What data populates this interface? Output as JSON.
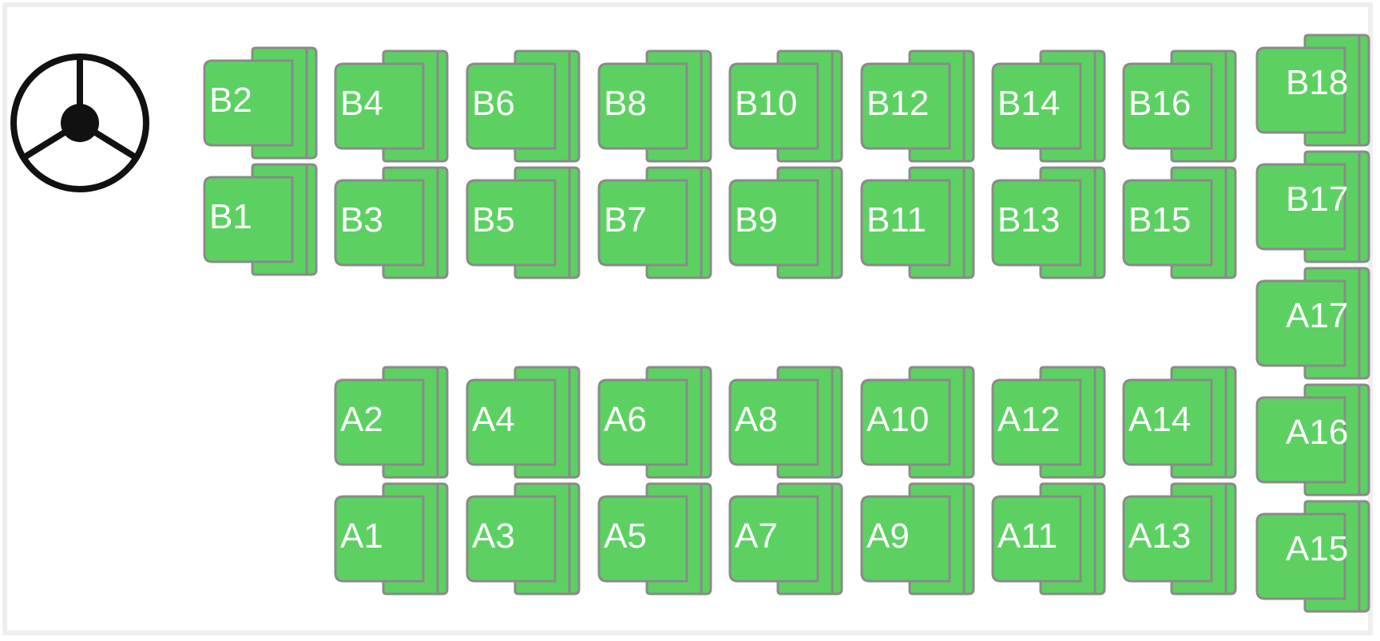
{
  "layout": {
    "seat_color": "#5cd162",
    "seat_outline": "#8a8a8a",
    "steering_color": "#111111",
    "frame_color": "#eeeeee"
  },
  "steering_wheel": {
    "icon": "steering-wheel-icon"
  },
  "seats": {
    "row_b_top": [
      "B2",
      "B4",
      "B6",
      "B8",
      "B10",
      "B12",
      "B14",
      "B16"
    ],
    "row_b_bottom": [
      "B1",
      "B3",
      "B5",
      "B7",
      "B9",
      "B11",
      "B13",
      "B15"
    ],
    "row_a_top": [
      "A2",
      "A4",
      "A6",
      "A8",
      "A10",
      "A12",
      "A14"
    ],
    "row_a_bottom": [
      "A1",
      "A3",
      "A5",
      "A7",
      "A9",
      "A11",
      "A13"
    ],
    "back_column": [
      "B18",
      "B17",
      "A17",
      "A16",
      "A15"
    ]
  }
}
